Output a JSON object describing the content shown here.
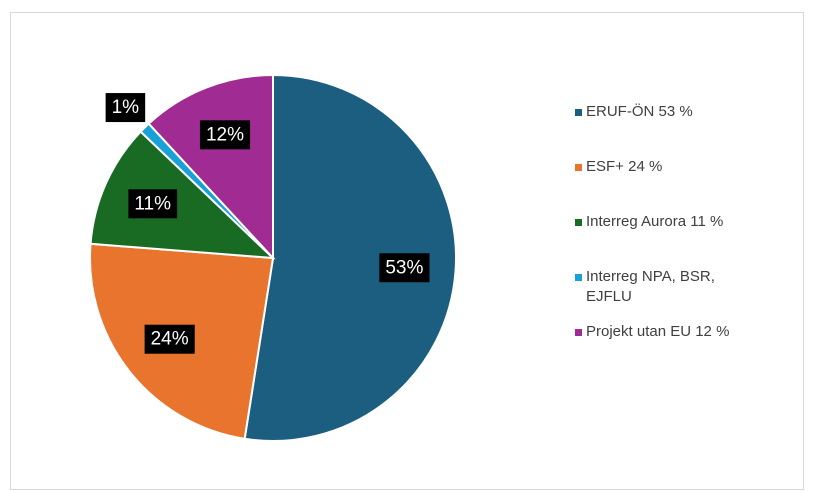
{
  "chart_data": {
    "type": "pie",
    "categories": [
      "ERUF-ÖN 53 %",
      "ESF+ 24 %",
      "Interreg Aurora 11 %",
      "Interreg NPA, BSR, EJFLU",
      "Projekt utan EU 12 %"
    ],
    "values": [
      53,
      24,
      11,
      1,
      12
    ],
    "value_labels": [
      "53%",
      "24%",
      "11%",
      "1%",
      "12%"
    ],
    "colors": [
      "#1b5e80",
      "#e8742e",
      "#196b24",
      "#1aa0d8",
      "#a02b93"
    ],
    "legend": "right"
  }
}
